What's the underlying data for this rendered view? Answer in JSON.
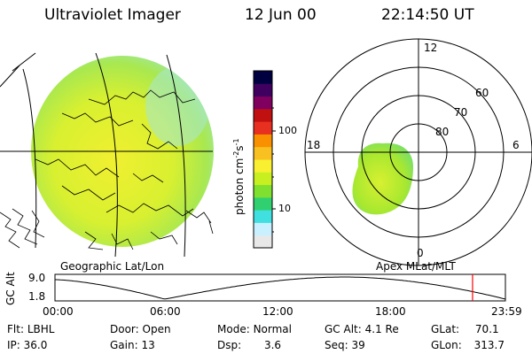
{
  "header": {
    "title": "Ultraviolet Imager",
    "date": "12 Jun 00",
    "time": "22:14:50 UT"
  },
  "colorbar": {
    "label_main": "photon cm",
    "label_exp1": "-2",
    "label_mid": "s",
    "label_exp2": "-1",
    "tick_100": "100",
    "tick_10": "10",
    "colors": [
      "#e8e8e8",
      "#c8f0ff",
      "#40e0e0",
      "#30d070",
      "#80e030",
      "#c8f020",
      "#f8f030",
      "#f8c020",
      "#f89000",
      "#e83020",
      "#c01010",
      "#800060",
      "#400060",
      "#000040"
    ]
  },
  "left_panel": {
    "caption": "Geographic Lat/Lon"
  },
  "right_panel": {
    "caption": "Apex MLat/MLT",
    "mlt_labels": {
      "top": "12",
      "right": "6",
      "bottom": "0",
      "left": "18"
    },
    "lat_labels": [
      "60",
      "70",
      "80"
    ]
  },
  "altitude_plot": {
    "ylabel": "GC Alt",
    "ytick_high": "9.0",
    "ytick_low": "1.8",
    "xticks": [
      "00:00",
      "06:00",
      "12:00",
      "18:00",
      "23:59"
    ],
    "current_hour": 22.25
  },
  "info": {
    "row1": [
      {
        "k": "Flt:",
        "v": "LBHL"
      },
      {
        "k": "Door:",
        "v": "Open"
      },
      {
        "k": "Mode:",
        "v": "Normal"
      },
      {
        "k": "GC Alt:",
        "v": "4.1 Re"
      },
      {
        "k": "GLat:",
        "v": "70.1"
      }
    ],
    "row2": [
      {
        "k": "IP:",
        "v": "36.0"
      },
      {
        "k": "Gain:",
        "v": "13"
      },
      {
        "k": "Dsp:",
        "v": "3.6"
      },
      {
        "k": "Seq:",
        "v": "39"
      },
      {
        "k": "GLon:",
        "v": "313.7"
      }
    ]
  },
  "colors": {
    "globe_fill": "#c8f030",
    "globe_edge": "#b8f060",
    "oval_fill": "#a8e830",
    "marker": "#ff0000"
  }
}
